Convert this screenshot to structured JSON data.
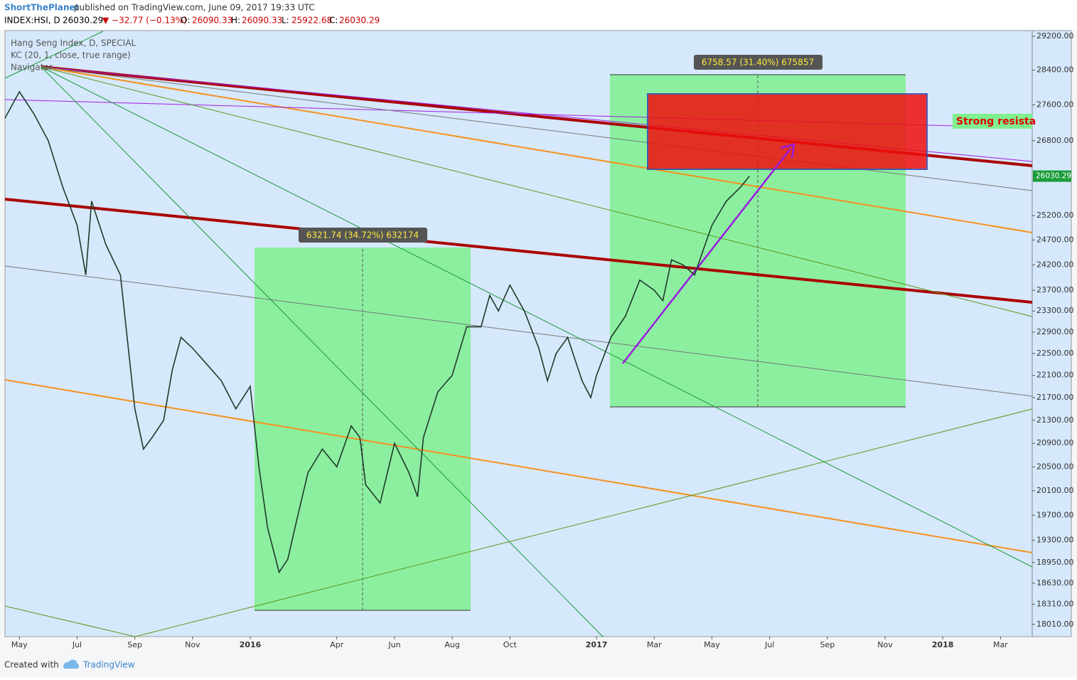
{
  "header": {
    "author": "ShortThePlanet",
    "published": "published on TradingView.com, June 09, 2017 19:33 UTC",
    "symbol": "INDEX:HSI, D",
    "change": "▼ −32.77 (−0.13%)",
    "ohlc_labels": [
      "O:",
      "H:",
      "L:",
      "C:"
    ],
    "open": "26090.33",
    "high": "26090.33",
    "low": "25922.68",
    "close": "26030.29"
  },
  "legend": [
    "Hang Seng Index, D, SPECIAL",
    "KC (20, 1, close, true range)",
    "Navigator"
  ],
  "annotations": {
    "measure_1": "6321.74 (34.72%) 632174",
    "measure_2": "6758.57 (31.40%) 675857",
    "resistance": "Strong resista"
  },
  "chart_data": {
    "type": "line",
    "log_scale": true,
    "color": "#1f3a2a",
    "last_value": 26030.29,
    "last_value_color": "#1a9c3a",
    "x": [
      3.5,
      4,
      4.5,
      5,
      5.5,
      6,
      6.3,
      6.5,
      7,
      7.5,
      8,
      8.3,
      8.6,
      9,
      9.3,
      9.6,
      10,
      10.5,
      11,
      11.5,
      12,
      12.3,
      12.6,
      13,
      13.3,
      13.6,
      14,
      14.5,
      15,
      15.5,
      15.8,
      16,
      16.5,
      17,
      17.5,
      17.8,
      18,
      18.5,
      19,
      19.5,
      20,
      20.3,
      20.6,
      21,
      21.5,
      22,
      22.3,
      22.6,
      23,
      23.5,
      23.8,
      24,
      24.5,
      25,
      25.5,
      26,
      26.3,
      26.6,
      27,
      27.4,
      27.7,
      28,
      28.5,
      29,
      29.3
    ],
    "values": [
      27300,
      27900,
      27400,
      26800,
      25800,
      25000,
      24000,
      25500,
      24600,
      24000,
      21500,
      20800,
      21000,
      21300,
      22200,
      22800,
      22600,
      22300,
      22000,
      21500,
      21900,
      20500,
      19500,
      18800,
      19000,
      19600,
      20400,
      20800,
      20500,
      21200,
      21000,
      20200,
      19900,
      20900,
      20400,
      20000,
      21000,
      21800,
      22100,
      23000,
      23000,
      23600,
      23300,
      23800,
      23300,
      22600,
      22000,
      22500,
      22800,
      22000,
      21700,
      22100,
      22800,
      23200,
      23900,
      23700,
      23500,
      24300,
      24200,
      24000,
      24500,
      25000,
      25500,
      25800,
      26030.29
    ],
    "xlim": [
      3.5,
      39.1
    ],
    "ylim": [
      17830,
      29320
    ],
    "xticks": [
      {
        "value": 4,
        "label": "May"
      },
      {
        "value": 6,
        "label": "Jul"
      },
      {
        "value": 8,
        "label": "Sep"
      },
      {
        "value": 10,
        "label": "Nov"
      },
      {
        "value": 12,
        "label": "2016"
      },
      {
        "value": 15,
        "label": "Apr"
      },
      {
        "value": 17,
        "label": "Jun"
      },
      {
        "value": 19,
        "label": "Aug"
      },
      {
        "value": 21,
        "label": "Oct"
      },
      {
        "value": 24,
        "label": "2017"
      },
      {
        "value": 26,
        "label": "Mar"
      },
      {
        "value": 28,
        "label": "May"
      },
      {
        "value": 30,
        "label": "Jul"
      },
      {
        "value": 32,
        "label": "Sep"
      },
      {
        "value": 34,
        "label": "Nov"
      },
      {
        "value": 36,
        "label": "2018"
      },
      {
        "value": 38,
        "label": "Mar"
      }
    ],
    "yticks": [
      {
        "value": 29200,
        "label": "29200.00"
      },
      {
        "value": 28400,
        "label": "28400.00"
      },
      {
        "value": 27600,
        "label": "27600.00"
      },
      {
        "value": 26800,
        "label": "26800.00"
      },
      {
        "value": 25200,
        "label": "25200.00"
      },
      {
        "value": 24700,
        "label": "24700.00"
      },
      {
        "value": 24200,
        "label": "24200.00"
      },
      {
        "value": 23700,
        "label": "23700.00"
      },
      {
        "value": 23300,
        "label": "23300.00"
      },
      {
        "value": 22900,
        "label": "22900.00"
      },
      {
        "value": 22500,
        "label": "22500.00"
      },
      {
        "value": 22100,
        "label": "22100.00"
      },
      {
        "value": 21700,
        "label": "21700.00"
      },
      {
        "value": 21300,
        "label": "21300.00"
      },
      {
        "value": 20900,
        "label": "20900.00"
      },
      {
        "value": 20500,
        "label": "20500.00"
      },
      {
        "value": 20100,
        "label": "20100.00"
      },
      {
        "value": 19700,
        "label": "19700.00"
      },
      {
        "value": 19300,
        "label": "19300.00"
      },
      {
        "value": 18950,
        "label": "18950.00"
      },
      {
        "value": 18630,
        "label": "18630.00"
      },
      {
        "value": 18310,
        "label": "18310.00"
      },
      {
        "value": 18010,
        "label": "18010.00"
      }
    ]
  },
  "footer": {
    "created": "Created with",
    "brand": "TradingView"
  }
}
